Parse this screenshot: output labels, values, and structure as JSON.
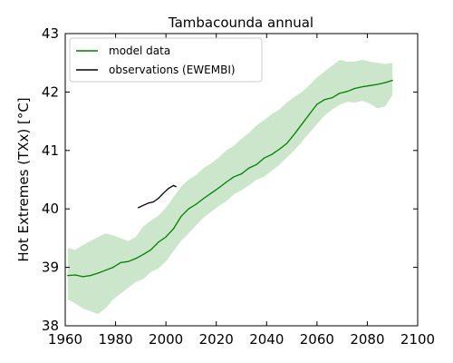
{
  "chart_data": {
    "type": "line",
    "title": "Tambacounda annual",
    "xlabel": "",
    "ylabel": "Hot Extremes (TXx) [°C]",
    "xlim": [
      1960,
      2100
    ],
    "ylim": [
      38,
      43
    ],
    "xticks": [
      1960,
      1980,
      2000,
      2020,
      2040,
      2060,
      2080,
      2100
    ],
    "yticks": [
      38,
      39,
      40,
      41,
      42,
      43
    ],
    "grid": false,
    "legend_position": "top-left",
    "colors": {
      "model": "#008000",
      "model_band": "#cbe6cb",
      "observations": "#000000"
    },
    "series": [
      {
        "name": "model data",
        "color": "#008000",
        "x": [
          1961,
          1964,
          1967,
          1970,
          1973,
          1976,
          1979,
          1982,
          1985,
          1988,
          1991,
          1994,
          1997,
          2000,
          2003,
          2006,
          2009,
          2012,
          2015,
          2018,
          2021,
          2024,
          2027,
          2030,
          2033,
          2036,
          2039,
          2042,
          2045,
          2048,
          2051,
          2054,
          2057,
          2060,
          2063,
          2066,
          2069,
          2072,
          2075,
          2078,
          2081,
          2084,
          2087,
          2090
        ],
        "y": [
          38.86,
          38.87,
          38.84,
          38.86,
          38.9,
          38.95,
          39.0,
          39.08,
          39.1,
          39.15,
          39.22,
          39.3,
          39.43,
          39.52,
          39.66,
          39.87,
          40.0,
          40.08,
          40.18,
          40.27,
          40.36,
          40.46,
          40.55,
          40.6,
          40.7,
          40.76,
          40.87,
          40.93,
          41.02,
          41.12,
          41.28,
          41.45,
          41.62,
          41.79,
          41.87,
          41.9,
          41.98,
          42.01,
          42.06,
          42.09,
          42.11,
          42.13,
          42.16,
          42.2
        ]
      },
      {
        "name": "observations (EWEMBI)",
        "color": "#000000",
        "x": [
          1989,
          1991,
          1993,
          1995,
          1997,
          1999,
          2001,
          2003,
          2004
        ],
        "y": [
          40.02,
          40.06,
          40.1,
          40.12,
          40.18,
          40.27,
          40.35,
          40.4,
          40.38
        ]
      }
    ],
    "band": {
      "x": [
        1961,
        1964,
        1967,
        1970,
        1973,
        1976,
        1979,
        1982,
        1985,
        1988,
        1991,
        1994,
        1997,
        2000,
        2003,
        2006,
        2009,
        2012,
        2015,
        2018,
        2021,
        2024,
        2027,
        2030,
        2033,
        2036,
        2039,
        2042,
        2045,
        2048,
        2051,
        2054,
        2057,
        2060,
        2063,
        2066,
        2069,
        2072,
        2075,
        2078,
        2081,
        2084,
        2087,
        2090
      ],
      "upper": [
        39.33,
        39.3,
        39.38,
        39.45,
        39.52,
        39.58,
        39.55,
        39.5,
        39.45,
        39.52,
        39.7,
        39.8,
        39.88,
        40.02,
        40.2,
        40.38,
        40.5,
        40.58,
        40.7,
        40.78,
        40.88,
        41.0,
        41.08,
        41.2,
        41.3,
        41.43,
        41.52,
        41.62,
        41.7,
        41.82,
        41.92,
        42.0,
        42.12,
        42.25,
        42.35,
        42.45,
        42.55,
        42.52,
        42.52,
        42.55,
        42.52,
        42.5,
        42.48,
        42.5
      ],
      "lower": [
        38.45,
        38.38,
        38.3,
        38.25,
        38.2,
        38.3,
        38.45,
        38.55,
        38.65,
        38.75,
        38.8,
        38.92,
        38.98,
        39.1,
        39.28,
        39.45,
        39.58,
        39.72,
        39.85,
        39.95,
        40.05,
        40.13,
        40.25,
        40.32,
        40.4,
        40.5,
        40.55,
        40.65,
        40.75,
        40.88,
        41.0,
        41.15,
        41.3,
        41.45,
        41.6,
        41.7,
        41.78,
        41.83,
        41.82,
        41.85,
        41.8,
        41.72,
        41.75,
        41.95
      ]
    }
  }
}
